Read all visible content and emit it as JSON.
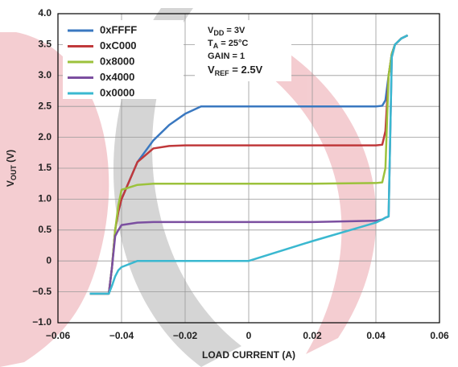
{
  "chart_data": {
    "type": "line",
    "xlabel": "LOAD CURRENT (A)",
    "ylabel": [
      "V",
      "OUT",
      " (V)"
    ],
    "annotations": [
      [
        "V",
        "DD",
        " = 3V"
      ],
      [
        "T",
        "A",
        " = 25°C"
      ],
      [
        "GAIN = 1",
        "",
        ""
      ],
      [
        "V",
        "REF",
        " = 2.5V"
      ]
    ],
    "x": [
      -0.05,
      -0.044,
      -0.043,
      -0.042,
      -0.041,
      -0.04,
      -0.035,
      -0.03,
      -0.025,
      -0.02,
      -0.015,
      0,
      0.02,
      0.04,
      0.042,
      0.043,
      0.044,
      0.045,
      0.046,
      0.048,
      0.05
    ],
    "series": [
      {
        "name": "0xFFFF",
        "color": "#3a78c0",
        "values": [
          -0.53,
          -0.53,
          -0.1,
          0.5,
          0.8,
          1.0,
          1.6,
          1.95,
          2.2,
          2.38,
          2.5,
          2.5,
          2.5,
          2.5,
          2.51,
          2.6,
          3.0,
          3.35,
          3.5,
          3.6,
          3.65
        ]
      },
      {
        "name": "0xC000",
        "color": "#c0393b",
        "values": [
          -0.53,
          -0.53,
          -0.1,
          0.5,
          0.8,
          1.0,
          1.6,
          1.82,
          1.86,
          1.87,
          1.87,
          1.87,
          1.87,
          1.87,
          1.88,
          2.1,
          3.0,
          3.35,
          3.5,
          3.6,
          3.65
        ]
      },
      {
        "name": "0x8000",
        "color": "#9cc23c",
        "values": [
          -0.53,
          -0.53,
          -0.1,
          0.5,
          0.9,
          1.15,
          1.23,
          1.25,
          1.25,
          1.25,
          1.25,
          1.25,
          1.25,
          1.26,
          1.27,
          1.5,
          3.0,
          3.35,
          3.5,
          3.6,
          3.65
        ]
      },
      {
        "name": "0x4000",
        "color": "#7b4fa0",
        "values": [
          -0.53,
          -0.53,
          -0.1,
          0.4,
          0.5,
          0.58,
          0.62,
          0.63,
          0.63,
          0.63,
          0.63,
          0.63,
          0.63,
          0.65,
          0.67,
          0.7,
          0.72,
          3.3,
          3.5,
          3.6,
          3.65
        ]
      },
      {
        "name": "0x0000",
        "color": "#3ab8d0",
        "values": [
          -0.53,
          -0.53,
          -0.4,
          -0.25,
          -0.15,
          -0.1,
          0,
          0,
          0,
          0,
          0,
          0,
          0.32,
          0.62,
          0.67,
          0.7,
          0.72,
          3.3,
          3.5,
          3.6,
          3.65
        ]
      }
    ],
    "xlim": [
      -0.06,
      0.06
    ],
    "xticks": [
      {
        "value": -0.06,
        "label": "−0.06"
      },
      {
        "value": -0.04,
        "label": "−0.04"
      },
      {
        "value": -0.02,
        "label": "−0.02"
      },
      0,
      0.02,
      0.04,
      0.06
    ],
    "ylim": [
      -1,
      4
    ],
    "yticks": [
      {
        "value": -1,
        "label": "−1.0"
      },
      {
        "value": -0.5,
        "label": "−0.5"
      },
      0,
      0.5,
      {
        "value": 1,
        "label": "1.0"
      },
      1.5,
      {
        "value": 2,
        "label": "2.0"
      },
      2.5,
      {
        "value": 3,
        "label": "3.0"
      },
      3.5,
      {
        "value": 4,
        "label": "4.0"
      }
    ],
    "grid": true,
    "legend": "upper-left"
  }
}
